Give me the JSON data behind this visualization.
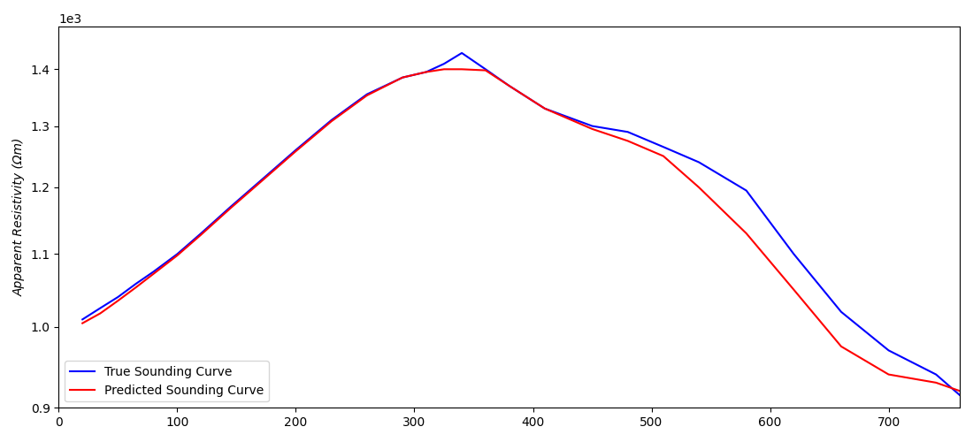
{
  "ylabel": "Apparent Resistivity (Ωm)",
  "xlabel": "",
  "legend_true": "True Sounding Curve",
  "legend_pred": "Predicted Sounding Curve",
  "true_color": "#0000ff",
  "pred_color": "#ff0000",
  "line_width": 1.5,
  "figsize": [
    11.0,
    5.0
  ],
  "dpi": 100,
  "xlim": [
    0,
    760
  ],
  "ylim_log_min": 900,
  "ylim_log_max": 1480,
  "x": [
    20,
    35,
    50,
    65,
    80,
    100,
    120,
    145,
    170,
    200,
    230,
    260,
    290,
    310,
    325,
    340,
    360,
    380,
    410,
    450,
    480,
    510,
    540,
    580,
    620,
    660,
    700,
    740,
    760
  ],
  "true_y": [
    1010,
    1025,
    1040,
    1058,
    1075,
    1100,
    1130,
    1170,
    1210,
    1260,
    1310,
    1355,
    1385,
    1395,
    1410,
    1430,
    1400,
    1370,
    1330,
    1300,
    1290,
    1265,
    1240,
    1195,
    1100,
    1020,
    970,
    940,
    915
  ],
  "pred_y": [
    1005,
    1018,
    1035,
    1053,
    1072,
    1098,
    1128,
    1168,
    1208,
    1258,
    1308,
    1353,
    1385,
    1395,
    1400,
    1400,
    1398,
    1370,
    1330,
    1295,
    1275,
    1250,
    1200,
    1130,
    1050,
    975,
    940,
    930,
    920
  ]
}
